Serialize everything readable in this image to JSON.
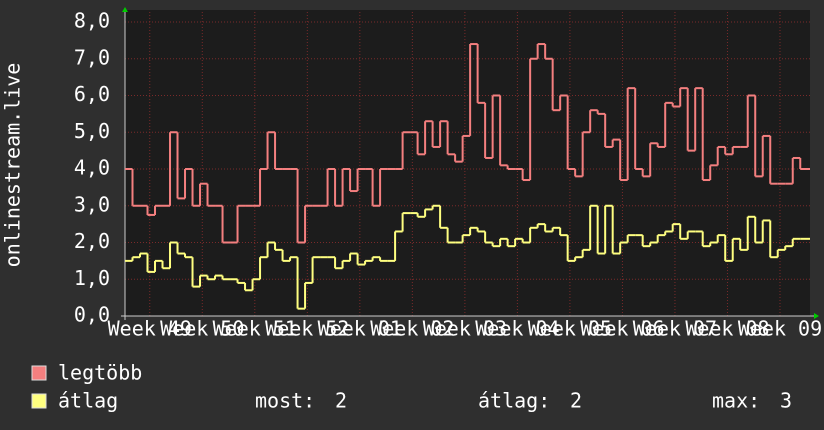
{
  "chart_data": {
    "type": "step",
    "y_label": "onlinestream.live",
    "x": [
      0,
      1,
      2,
      3,
      4,
      5,
      6,
      7,
      8,
      9,
      10,
      11,
      12,
      13,
      14,
      15,
      16,
      17,
      18,
      19,
      20,
      21,
      22,
      23,
      24,
      25,
      26,
      27,
      28,
      29,
      30,
      31,
      32,
      33,
      34,
      35,
      36,
      37,
      38,
      39,
      40,
      41,
      42,
      43,
      44,
      45,
      46,
      47,
      48,
      49,
      50,
      51,
      52,
      53,
      54,
      55,
      56,
      57,
      58,
      59,
      60,
      61,
      62,
      63,
      64,
      65,
      66,
      67,
      68,
      69,
      70,
      71,
      72,
      73,
      74,
      75,
      76,
      77,
      78,
      79,
      80,
      81,
      82,
      83,
      84,
      85,
      86,
      87,
      88,
      89,
      90
    ],
    "series": [
      {
        "name": "legtöbb",
        "color": "#f47f7f",
        "values": [
          4.0,
          3.0,
          3.0,
          2.75,
          3.0,
          3.0,
          5.0,
          3.2,
          4.0,
          3.0,
          3.6,
          3.0,
          3.0,
          2.0,
          2.0,
          3.0,
          3.0,
          3.0,
          4.0,
          5.0,
          4.0,
          4.0,
          4.0,
          2.0,
          3.0,
          3.0,
          3.0,
          4.0,
          3.0,
          4.0,
          3.4,
          4.0,
          4.0,
          3.0,
          4.0,
          4.0,
          4.0,
          5.0,
          5.0,
          4.4,
          5.3,
          4.6,
          5.3,
          4.4,
          4.2,
          4.9,
          7.4,
          5.8,
          4.3,
          6.0,
          4.1,
          4.0,
          4.0,
          3.7,
          7.0,
          7.4,
          7.0,
          5.6,
          6.0,
          4.0,
          3.8,
          5.0,
          5.6,
          5.5,
          4.6,
          4.8,
          3.7,
          6.2,
          4.0,
          3.8,
          4.7,
          4.6,
          5.8,
          5.7,
          6.2,
          4.5,
          6.2,
          3.7,
          4.1,
          4.6,
          4.4,
          4.6,
          4.6,
          6.0,
          3.8,
          4.9,
          3.6,
          3.6,
          3.6,
          4.3,
          4.0
        ]
      },
      {
        "name": "átlag",
        "color": "#ffff80",
        "values": [
          1.5,
          1.6,
          1.7,
          1.2,
          1.5,
          1.3,
          2.0,
          1.7,
          1.6,
          0.8,
          1.1,
          1.0,
          1.1,
          1.0,
          1.0,
          0.9,
          0.7,
          1.0,
          1.6,
          2.0,
          1.8,
          1.5,
          1.6,
          0.2,
          0.9,
          1.6,
          1.6,
          1.6,
          1.3,
          1.5,
          1.7,
          1.4,
          1.5,
          1.6,
          1.5,
          1.5,
          2.3,
          2.8,
          2.8,
          2.7,
          2.9,
          3.0,
          2.4,
          2.0,
          2.0,
          2.2,
          2.4,
          2.3,
          2.0,
          1.9,
          2.1,
          1.9,
          2.1,
          2.0,
          2.4,
          2.5,
          2.3,
          2.4,
          2.2,
          1.5,
          1.6,
          1.8,
          3.0,
          1.7,
          3.0,
          1.7,
          2.0,
          2.2,
          2.2,
          1.9,
          2.0,
          2.2,
          2.3,
          2.5,
          2.1,
          2.3,
          2.3,
          1.9,
          2.0,
          2.2,
          1.5,
          2.1,
          1.8,
          2.7,
          2.0,
          2.6,
          1.6,
          1.8,
          1.9,
          2.1,
          2.1
        ]
      }
    ],
    "xlim": [
      0,
      91.3
    ],
    "xticks": [
      {
        "value": 3.3,
        "label": "Week 49"
      },
      {
        "value": 10.3,
        "label": "Week 50"
      },
      {
        "value": 17.3,
        "label": "Week 51"
      },
      {
        "value": 24.3,
        "label": "Week 52"
      },
      {
        "value": 31.3,
        "label": "Week 01"
      },
      {
        "value": 38.3,
        "label": "Week 02"
      },
      {
        "value": 45.3,
        "label": "Week 03"
      },
      {
        "value": 52.3,
        "label": "Week 04"
      },
      {
        "value": 59.3,
        "label": "Week 05"
      },
      {
        "value": 66.3,
        "label": "Week 06"
      },
      {
        "value": 73.3,
        "label": "Week 07"
      },
      {
        "value": 80.3,
        "label": "Week 08"
      },
      {
        "value": 87.3,
        "label": "Week 09"
      }
    ],
    "ylim": [
      0,
      8
    ],
    "yticks": [
      {
        "value": 0,
        "label": "0,0"
      },
      {
        "value": 1,
        "label": "1,0"
      },
      {
        "value": 2,
        "label": "2,0"
      },
      {
        "value": 3,
        "label": "3,0"
      },
      {
        "value": 4,
        "label": "4,0"
      },
      {
        "value": 5,
        "label": "5,0"
      },
      {
        "value": 6,
        "label": "6,0"
      },
      {
        "value": 7,
        "label": "7,0"
      },
      {
        "value": 8,
        "label": "8,0"
      }
    ],
    "grid": true,
    "stats": [
      {
        "label": "most:",
        "value": 2
      },
      {
        "label": "átlag:",
        "value": 2
      },
      {
        "label": "max:",
        "value": 3
      }
    ]
  }
}
